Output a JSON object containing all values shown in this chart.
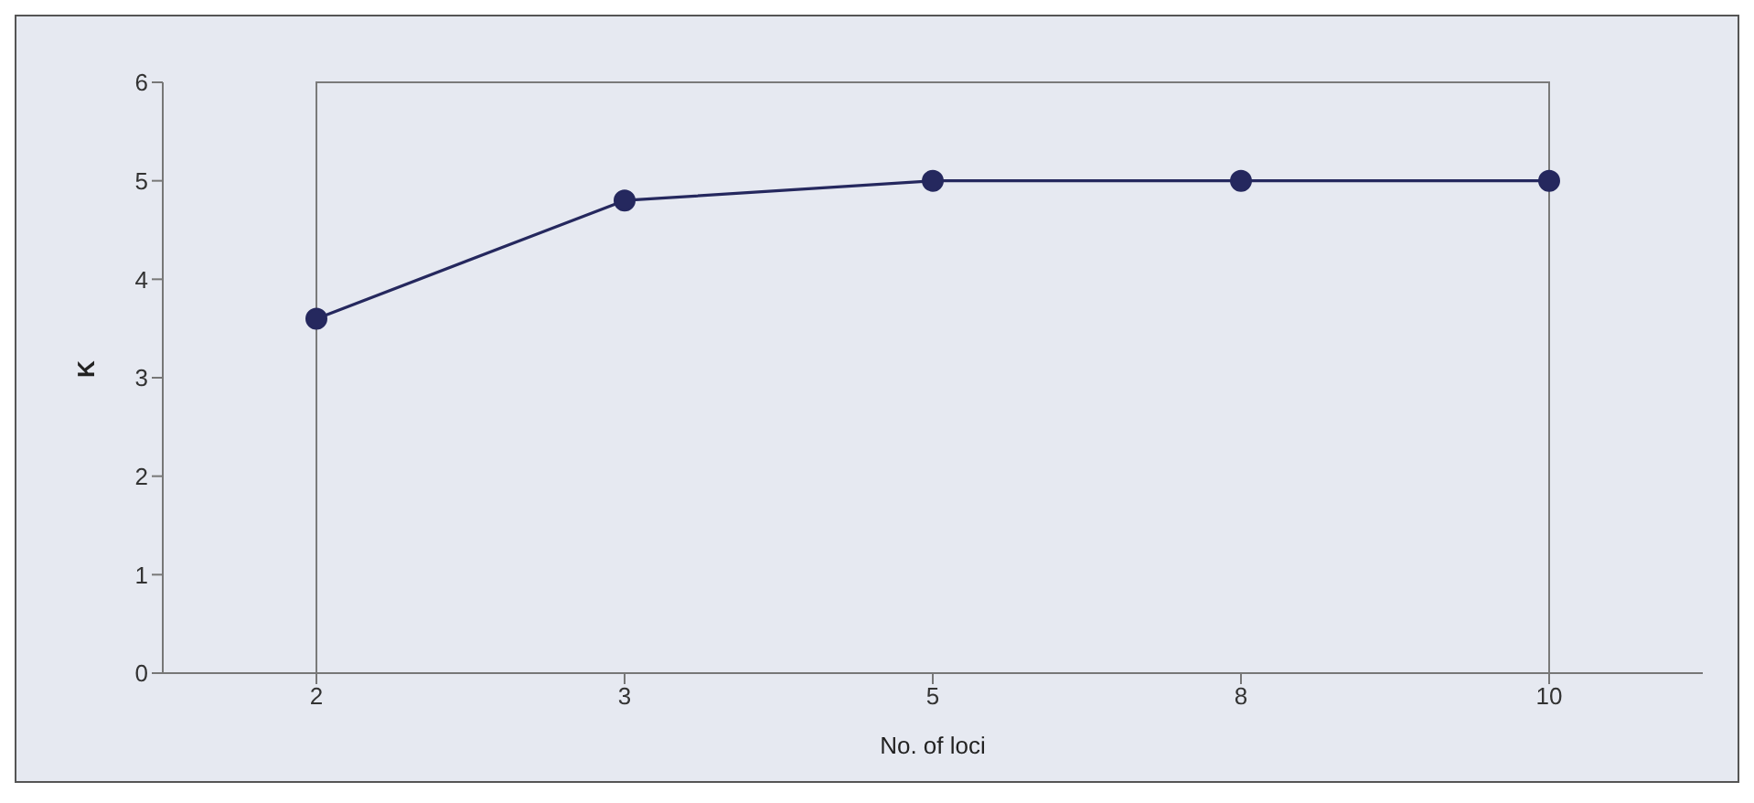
{
  "chart_data": {
    "type": "line",
    "xlabel": "No. of loci",
    "ylabel": "K",
    "categories": [
      "2",
      "3",
      "5",
      "8",
      "10"
    ],
    "series": [
      {
        "color": "#25285e",
        "values": [
          3.6,
          4.8,
          5,
          5,
          5
        ]
      }
    ],
    "ylim": [
      0,
      6
    ],
    "yticks": [
      0,
      1,
      2,
      3,
      4,
      5,
      6
    ],
    "grid": false,
    "legend": false,
    "marker": "circle",
    "line_style": "solid"
  }
}
